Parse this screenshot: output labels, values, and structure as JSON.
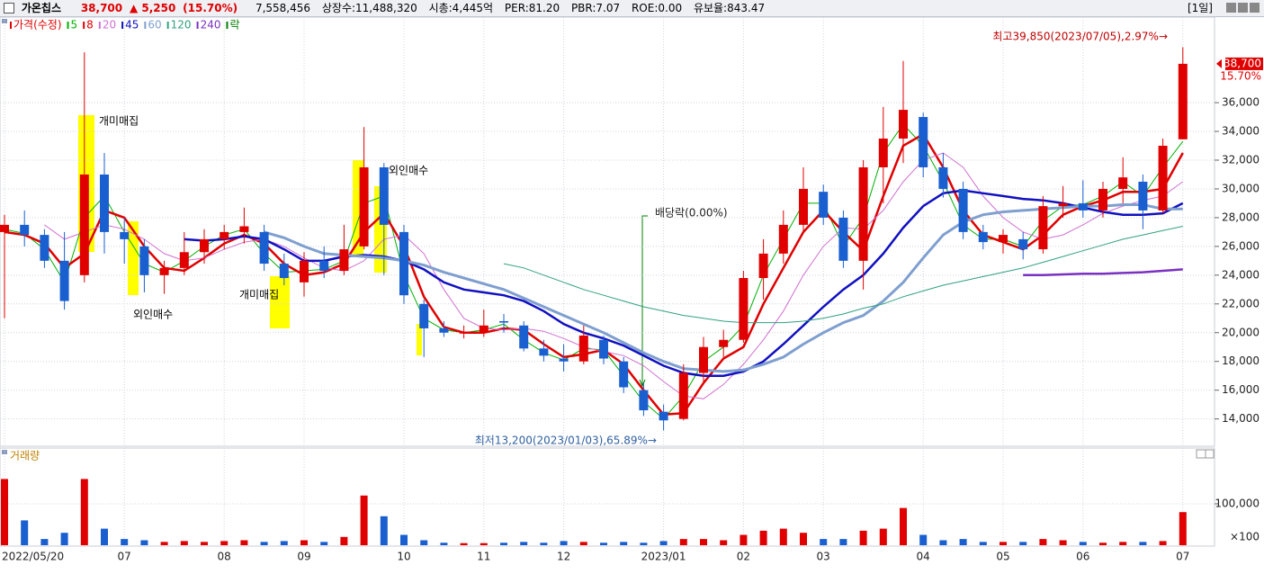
{
  "header": {
    "name": "가온칩스",
    "price": "38,700",
    "change": "▲ 5,250",
    "change_pct": "(15.70%)",
    "volume": "7,558,456",
    "listed": "상장수:11,488,320",
    "mcap": "시총:4,445억",
    "per": "PER:81.20",
    "pbr": "PBR:7.07",
    "roe": "ROE:0.00",
    "reserve": "유보율:843.47",
    "period": "[1일]"
  },
  "chart_data": [
    {
      "type": "candlestick",
      "candles": {
        "name": "가격(수정)",
        "up_color": "#e00000",
        "down_color": "#1a5fd0",
        "open": [
          27000,
          27500,
          26800,
          25000,
          24000,
          31000,
          27000,
          26000,
          24000,
          24500,
          25600,
          26500,
          27000,
          27000,
          24800,
          23500,
          25000,
          24300,
          26000,
          31500,
          27000,
          22000,
          20300,
          20000,
          20000,
          20800,
          20500,
          18900,
          18200,
          18000,
          19500,
          18000,
          16000,
          14500,
          14000,
          17200,
          19000,
          19500,
          23800,
          25500,
          27500,
          29800,
          28000,
          25000,
          31500,
          33500,
          35000,
          31500,
          30000,
          27000,
          26300,
          26500,
          25800,
          28800,
          29000,
          28500,
          30000,
          30500,
          28500,
          33450
        ],
        "high": [
          28200,
          28500,
          27200,
          27000,
          39500,
          32500,
          28000,
          26500,
          25000,
          27000,
          27200,
          27500,
          28700,
          27500,
          25500,
          25600,
          26000,
          27500,
          34300,
          31800,
          27500,
          22300,
          20800,
          20500,
          21600,
          21300,
          20800,
          19500,
          19200,
          20500,
          19800,
          18300,
          16500,
          15000,
          17800,
          19700,
          20200,
          24300,
          26500,
          28500,
          31500,
          30300,
          28500,
          32000,
          35700,
          38900,
          35300,
          32500,
          30500,
          27500,
          27200,
          27000,
          29500,
          30200,
          30600,
          30500,
          32200,
          31000,
          33500,
          39850
        ],
        "low": [
          21000,
          26000,
          24500,
          21600,
          23500,
          25500,
          24800,
          22800,
          22700,
          24000,
          24800,
          25800,
          26200,
          24300,
          23300,
          22500,
          23800,
          24000,
          25800,
          24000,
          22000,
          18300,
          19700,
          19600,
          19700,
          20000,
          18700,
          18000,
          17300,
          17800,
          17800,
          15800,
          14200,
          13200,
          13900,
          16500,
          18300,
          19300,
          22300,
          24800,
          27000,
          27500,
          24500,
          23000,
          29000,
          31800,
          30800,
          29400,
          26500,
          25800,
          25500,
          25100,
          25500,
          28000,
          28000,
          28000,
          29000,
          27200,
          28300,
          33450
        ],
        "close": [
          27500,
          26800,
          25000,
          22200,
          31000,
          27000,
          26500,
          24000,
          24500,
          25600,
          26500,
          27000,
          27400,
          24800,
          23800,
          25000,
          24300,
          25800,
          31500,
          27500,
          22600,
          20300,
          20000,
          20000,
          20500,
          20700,
          18900,
          18400,
          18000,
          19800,
          18200,
          16200,
          14600,
          13900,
          17200,
          19000,
          19500,
          23800,
          25500,
          27500,
          30000,
          28000,
          25000,
          31500,
          33500,
          35500,
          31500,
          30000,
          27000,
          26300,
          26800,
          25800,
          28800,
          29000,
          28500,
          30000,
          30800,
          28500,
          33000,
          38700
        ]
      },
      "series": [
        {
          "name": "5",
          "color": "#00b000",
          "values": [
            27200,
            26900,
            25800,
            23500,
            28000,
            29500,
            27000,
            24800,
            24200,
            25000,
            26000,
            26800,
            27200,
            25500,
            24200,
            24300,
            24400,
            25000,
            29000,
            29500,
            24000,
            21000,
            20200,
            20000,
            20200,
            20600,
            19500,
            18600,
            18100,
            18900,
            18800,
            17000,
            15200,
            14000,
            15600,
            18000,
            19000,
            20500,
            24000,
            26500,
            29000,
            29000,
            26000,
            28000,
            32500,
            34500,
            33000,
            30500,
            27500,
            26500,
            26500,
            26000,
            27800,
            28800,
            28900,
            29500,
            30500,
            29500,
            31500,
            33300
          ]
        },
        {
          "name": "8",
          "color": "#e00000",
          "values": [
            27000,
            26800,
            26200,
            24500,
            25500,
            28500,
            28000,
            26000,
            24500,
            24300,
            25200,
            26200,
            26800,
            26200,
            24800,
            24000,
            24200,
            24800,
            27000,
            28300,
            26000,
            22500,
            20400,
            20000,
            20000,
            20300,
            20200,
            19200,
            18300,
            18500,
            18800,
            17800,
            16000,
            14300,
            14400,
            16500,
            18200,
            19000,
            22000,
            24500,
            27000,
            28500,
            27000,
            25700,
            29500,
            33000,
            33800,
            31500,
            28500,
            26800,
            26300,
            25800,
            26800,
            28200,
            28800,
            29200,
            29800,
            29800,
            30000,
            32500
          ]
        },
        {
          "name": "20",
          "color": "#d070d0",
          "values": [
            null,
            null,
            27500,
            26500,
            27000,
            27500,
            27200,
            26500,
            25500,
            25000,
            25200,
            25800,
            26300,
            26500,
            26000,
            25200,
            24500,
            24300,
            25000,
            26500,
            26800,
            25500,
            23000,
            21000,
            20300,
            20200,
            20300,
            20100,
            19600,
            19000,
            18700,
            18400,
            17700,
            16600,
            15600,
            15400,
            16400,
            17800,
            19500,
            21500,
            24000,
            26000,
            27300,
            27200,
            28500,
            30500,
            32000,
            32500,
            31500,
            29500,
            28000,
            27000,
            26500,
            26800,
            27500,
            28300,
            28800,
            29200,
            29500,
            30500
          ]
        },
        {
          "name": "45",
          "color": "#1010c0",
          "values": [
            null,
            null,
            null,
            null,
            null,
            null,
            null,
            null,
            null,
            26500,
            26400,
            26500,
            26700,
            26500,
            25800,
            25000,
            25000,
            25300,
            25400,
            25300,
            25000,
            24400,
            23500,
            23000,
            22800,
            22600,
            22200,
            21500,
            20600,
            20000,
            19600,
            19100,
            18400,
            17700,
            17200,
            17000,
            17000,
            17300,
            18000,
            19200,
            20500,
            21800,
            23000,
            24000,
            25500,
            27300,
            28800,
            29700,
            29900,
            29700,
            29500,
            29300,
            29200,
            29000,
            28700,
            28400,
            28200,
            28200,
            28300,
            29000
          ]
        },
        {
          "name": "60",
          "color": "#7f9fcf",
          "values": [
            null,
            null,
            null,
            null,
            null,
            null,
            null,
            null,
            null,
            null,
            null,
            null,
            null,
            27000,
            26600,
            26000,
            25500,
            25400,
            25300,
            25200,
            25000,
            24700,
            24200,
            23800,
            23400,
            23000,
            22400,
            21800,
            21200,
            20600,
            20000,
            19300,
            18600,
            18000,
            17500,
            17400,
            17300,
            17400,
            17800,
            18300,
            19200,
            20000,
            20700,
            21200,
            22200,
            23500,
            25200,
            26800,
            27700,
            28200,
            28400,
            28500,
            28600,
            28700,
            28800,
            28800,
            28900,
            28900,
            28600,
            28600
          ]
        },
        {
          "name": "120",
          "color": "#30a080",
          "values": [
            null,
            null,
            null,
            null,
            null,
            null,
            null,
            null,
            null,
            null,
            null,
            null,
            null,
            null,
            null,
            null,
            null,
            null,
            null,
            null,
            null,
            null,
            null,
            null,
            null,
            24800,
            24500,
            24000,
            23500,
            23000,
            22600,
            22200,
            21800,
            21500,
            21200,
            21000,
            20800,
            20700,
            20700,
            20700,
            20800,
            21000,
            21300,
            21700,
            22000,
            22500,
            22900,
            23300,
            23600,
            23900,
            24200,
            24500,
            24900,
            25300,
            25700,
            26100,
            26500,
            26800,
            27100,
            27400
          ]
        },
        {
          "name": "240",
          "color": "#7a30c0",
          "values": [
            null,
            null,
            null,
            null,
            null,
            null,
            null,
            null,
            null,
            null,
            null,
            null,
            null,
            null,
            null,
            null,
            null,
            null,
            null,
            null,
            null,
            null,
            null,
            null,
            null,
            null,
            null,
            null,
            null,
            null,
            null,
            null,
            null,
            null,
            null,
            null,
            null,
            null,
            null,
            null,
            null,
            null,
            null,
            null,
            null,
            null,
            null,
            null,
            null,
            null,
            null,
            24000,
            24000,
            24050,
            24100,
            24100,
            24150,
            24200,
            24300,
            24400
          ]
        }
      ],
      "legend_extra": {
        "name": "락",
        "color": "#008000"
      },
      "ylim": [
        12100,
        41950
      ],
      "yticks": [
        {
          "value": 14000,
          "label": "14,000"
        },
        {
          "value": 16000,
          "label": "16,000"
        },
        {
          "value": 18000,
          "label": "18,000"
        },
        {
          "value": 20000,
          "label": "20,000"
        },
        {
          "value": 22000,
          "label": "22,000"
        },
        {
          "value": 24000,
          "label": "24,000"
        },
        {
          "value": 26000,
          "label": "26,000"
        },
        {
          "value": 28000,
          "label": "28,000"
        },
        {
          "value": 30000,
          "label": "30,000"
        },
        {
          "value": 32000,
          "label": "32,000"
        },
        {
          "value": 34000,
          "label": "34,000"
        },
        {
          "value": 36000,
          "label": "36,000"
        }
      ],
      "grid": true,
      "price_marker": {
        "value": 38700,
        "label": "38,700",
        "change_label": "15.70%",
        "color": "#e00000"
      },
      "annotations": [
        "개미매집",
        "외인매수",
        "개미매집",
        "외인매수",
        "배당락(0.00%)",
        "최고39,850(2023/07/05),2.97%→",
        "최저13,200(2023/01/03),65.89%→"
      ]
    },
    {
      "type": "bar",
      "title": "거래량",
      "categories": [
        "2022/05/20",
        null,
        null,
        null,
        null,
        null,
        "07",
        null,
        null,
        null,
        null,
        "08",
        null,
        null,
        null,
        "09",
        null,
        null,
        null,
        null,
        "10",
        null,
        null,
        null,
        "11",
        null,
        null,
        null,
        "12",
        null,
        null,
        null,
        null,
        "2023/01",
        null,
        null,
        null,
        "02",
        null,
        null,
        null,
        "03",
        null,
        null,
        null,
        null,
        "04",
        null,
        null,
        null,
        "05",
        null,
        null,
        null,
        "06",
        null,
        null,
        null,
        null,
        "07"
      ],
      "values": [
        160000,
        60000,
        15000,
        30000,
        160000,
        40000,
        15000,
        12000,
        8000,
        10000,
        8000,
        10000,
        12000,
        8000,
        10000,
        12000,
        8000,
        20000,
        120000,
        70000,
        25000,
        12000,
        6000,
        5000,
        5000,
        6000,
        8000,
        6000,
        10000,
        8000,
        6000,
        8000,
        6000,
        10000,
        15000,
        15000,
        12000,
        25000,
        35000,
        40000,
        30000,
        15000,
        15000,
        35000,
        40000,
        90000,
        25000,
        12000,
        15000,
        8000,
        8000,
        8000,
        15000,
        12000,
        8000,
        6000,
        8000,
        8000,
        10000,
        80000
      ],
      "ylim": [
        0,
        200000
      ],
      "yticks": [
        {
          "value": 100000,
          "label": "100,000"
        }
      ],
      "unit_label": "×100",
      "grid": true
    }
  ]
}
